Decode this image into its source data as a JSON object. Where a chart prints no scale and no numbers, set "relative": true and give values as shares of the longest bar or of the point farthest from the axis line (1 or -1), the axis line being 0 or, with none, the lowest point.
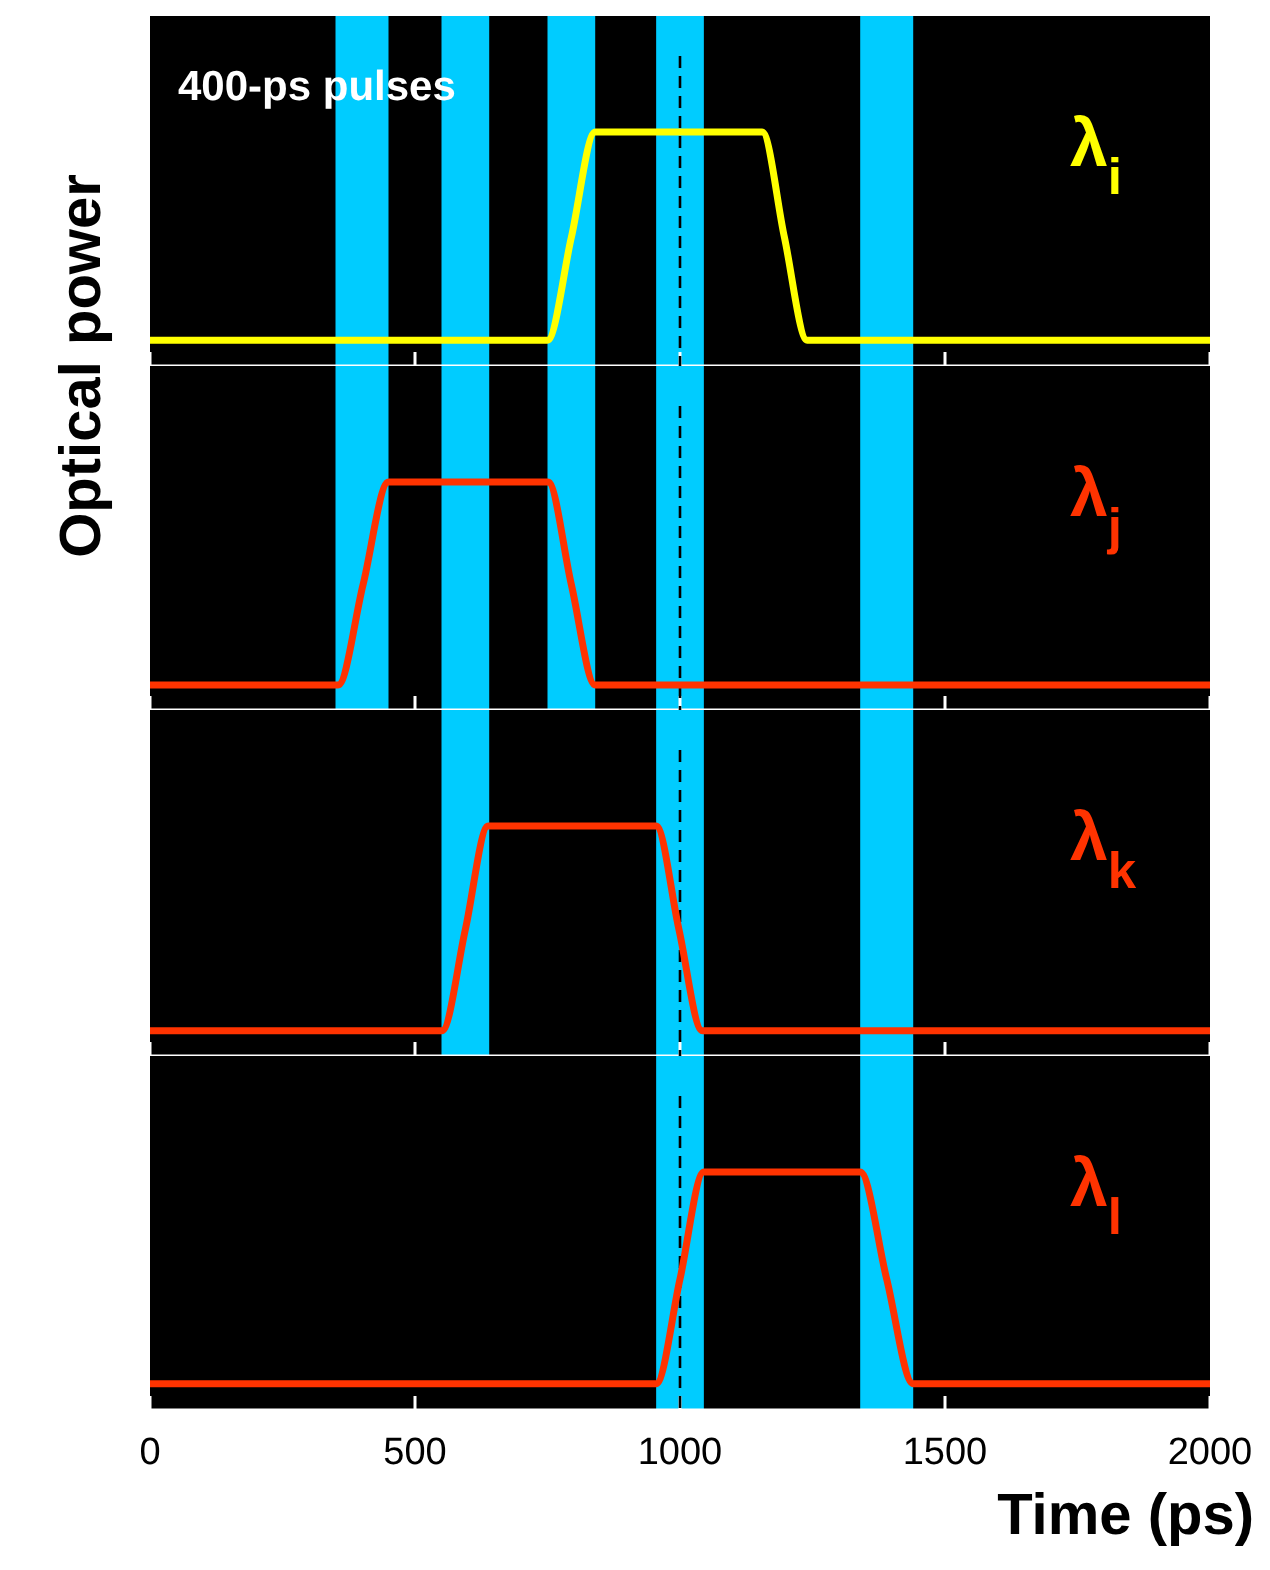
{
  "chart_data": [
    {
      "type": "line",
      "relative": true,
      "ylabel": "Optical power",
      "annotations": [
        "400-ps pulses"
      ],
      "xlim": [
        0,
        2000
      ],
      "xticks": [
        0,
        500,
        1000,
        1500,
        2000
      ],
      "tick_labels": false,
      "series": [
        {
          "name": "λ$_{i}$",
          "color": "#ffff00",
          "x": [
            0,
            750,
            795,
            840,
            1155,
            1197,
            1240,
            2000
          ],
          "values": [
            0.11,
            0.11,
            0.55,
            1,
            1,
            0.55,
            0.11,
            0.11
          ]
        }
      ],
      "bands": [
        {
          "axis": "x",
          "from": 350,
          "to": 450,
          "color": "#00ccff"
        },
        {
          "axis": "x",
          "from": 550,
          "to": 640,
          "color": "#00ccff"
        },
        {
          "axis": "x",
          "from": 750,
          "to": 840,
          "color": "#00ccff"
        },
        {
          "axis": "x",
          "from": 955,
          "to": 1045,
          "color": "#00ccff"
        },
        {
          "axis": "x",
          "from": 1340,
          "to": 1440,
          "color": "#00ccff"
        }
      ],
      "ref_lines": [
        {
          "axis": "x",
          "value": 1000,
          "color": "#000000",
          "line_style": "dashed"
        }
      ]
    },
    {
      "type": "line",
      "relative": true,
      "xlim": [
        0,
        2000
      ],
      "xticks": [
        0,
        500,
        1000,
        1500,
        2000
      ],
      "tick_labels": false,
      "series": [
        {
          "name": "λ$_{j}$",
          "color": "#ff3300",
          "x": [
            0,
            355,
            402,
            450,
            751,
            795,
            840,
            2000
          ],
          "values": [
            0.11,
            0.11,
            0.55,
            1,
            1,
            0.55,
            0.11,
            0.11
          ]
        }
      ],
      "bands": [
        {
          "axis": "x",
          "from": 350,
          "to": 450,
          "color": "#00ccff"
        },
        {
          "axis": "x",
          "from": 550,
          "to": 640,
          "color": "#00ccff"
        },
        {
          "axis": "x",
          "from": 750,
          "to": 840,
          "color": "#00ccff"
        },
        {
          "axis": "x",
          "from": 955,
          "to": 1045,
          "color": "#00ccff"
        },
        {
          "axis": "x",
          "from": 1340,
          "to": 1440,
          "color": "#00ccff"
        }
      ],
      "ref_lines": [
        {
          "axis": "x",
          "value": 1000,
          "color": "#000000",
          "line_style": "dashed"
        }
      ]
    },
    {
      "type": "line",
      "relative": true,
      "xlim": [
        0,
        2000
      ],
      "xticks": [
        0,
        500,
        1000,
        1500,
        2000
      ],
      "tick_labels": false,
      "series": [
        {
          "name": "λ$_{k}$",
          "color": "#ff3300",
          "x": [
            0,
            551,
            595,
            638,
            955,
            998,
            1042,
            2000
          ],
          "values": [
            0.11,
            0.11,
            0.55,
            1,
            1,
            0.55,
            0.11,
            0.11
          ]
        }
      ],
      "bands": [
        {
          "axis": "x",
          "from": 550,
          "to": 640,
          "color": "#00ccff"
        },
        {
          "axis": "x",
          "from": 955,
          "to": 1045,
          "color": "#00ccff"
        },
        {
          "axis": "x",
          "from": 1340,
          "to": 1440,
          "color": "#00ccff"
        }
      ],
      "ref_lines": [
        {
          "axis": "x",
          "value": 1000,
          "color": "#000000",
          "line_style": "dashed"
        }
      ]
    },
    {
      "type": "line",
      "relative": true,
      "xlabel": "Time (ps)",
      "xlim": [
        0,
        2000
      ],
      "xticks": [
        0,
        500,
        1000,
        1500,
        2000
      ],
      "tick_labels": "x",
      "series": [
        {
          "name": "λ$_{l}$",
          "color": "#ff3300",
          "x": [
            0,
            955,
            1000,
            1045,
            1340,
            1390,
            1440,
            2000
          ],
          "values": [
            0.11,
            0.11,
            0.55,
            1,
            1,
            0.55,
            0.11,
            0.11
          ]
        }
      ],
      "bands": [
        {
          "axis": "x",
          "from": 955,
          "to": 1045,
          "color": "#00ccff"
        },
        {
          "axis": "x",
          "from": 1340,
          "to": 1440,
          "color": "#00ccff"
        }
      ],
      "ref_lines": [
        {
          "axis": "x",
          "value": 1000,
          "color": "#000000",
          "line_style": "dashed"
        }
      ]
    }
  ]
}
